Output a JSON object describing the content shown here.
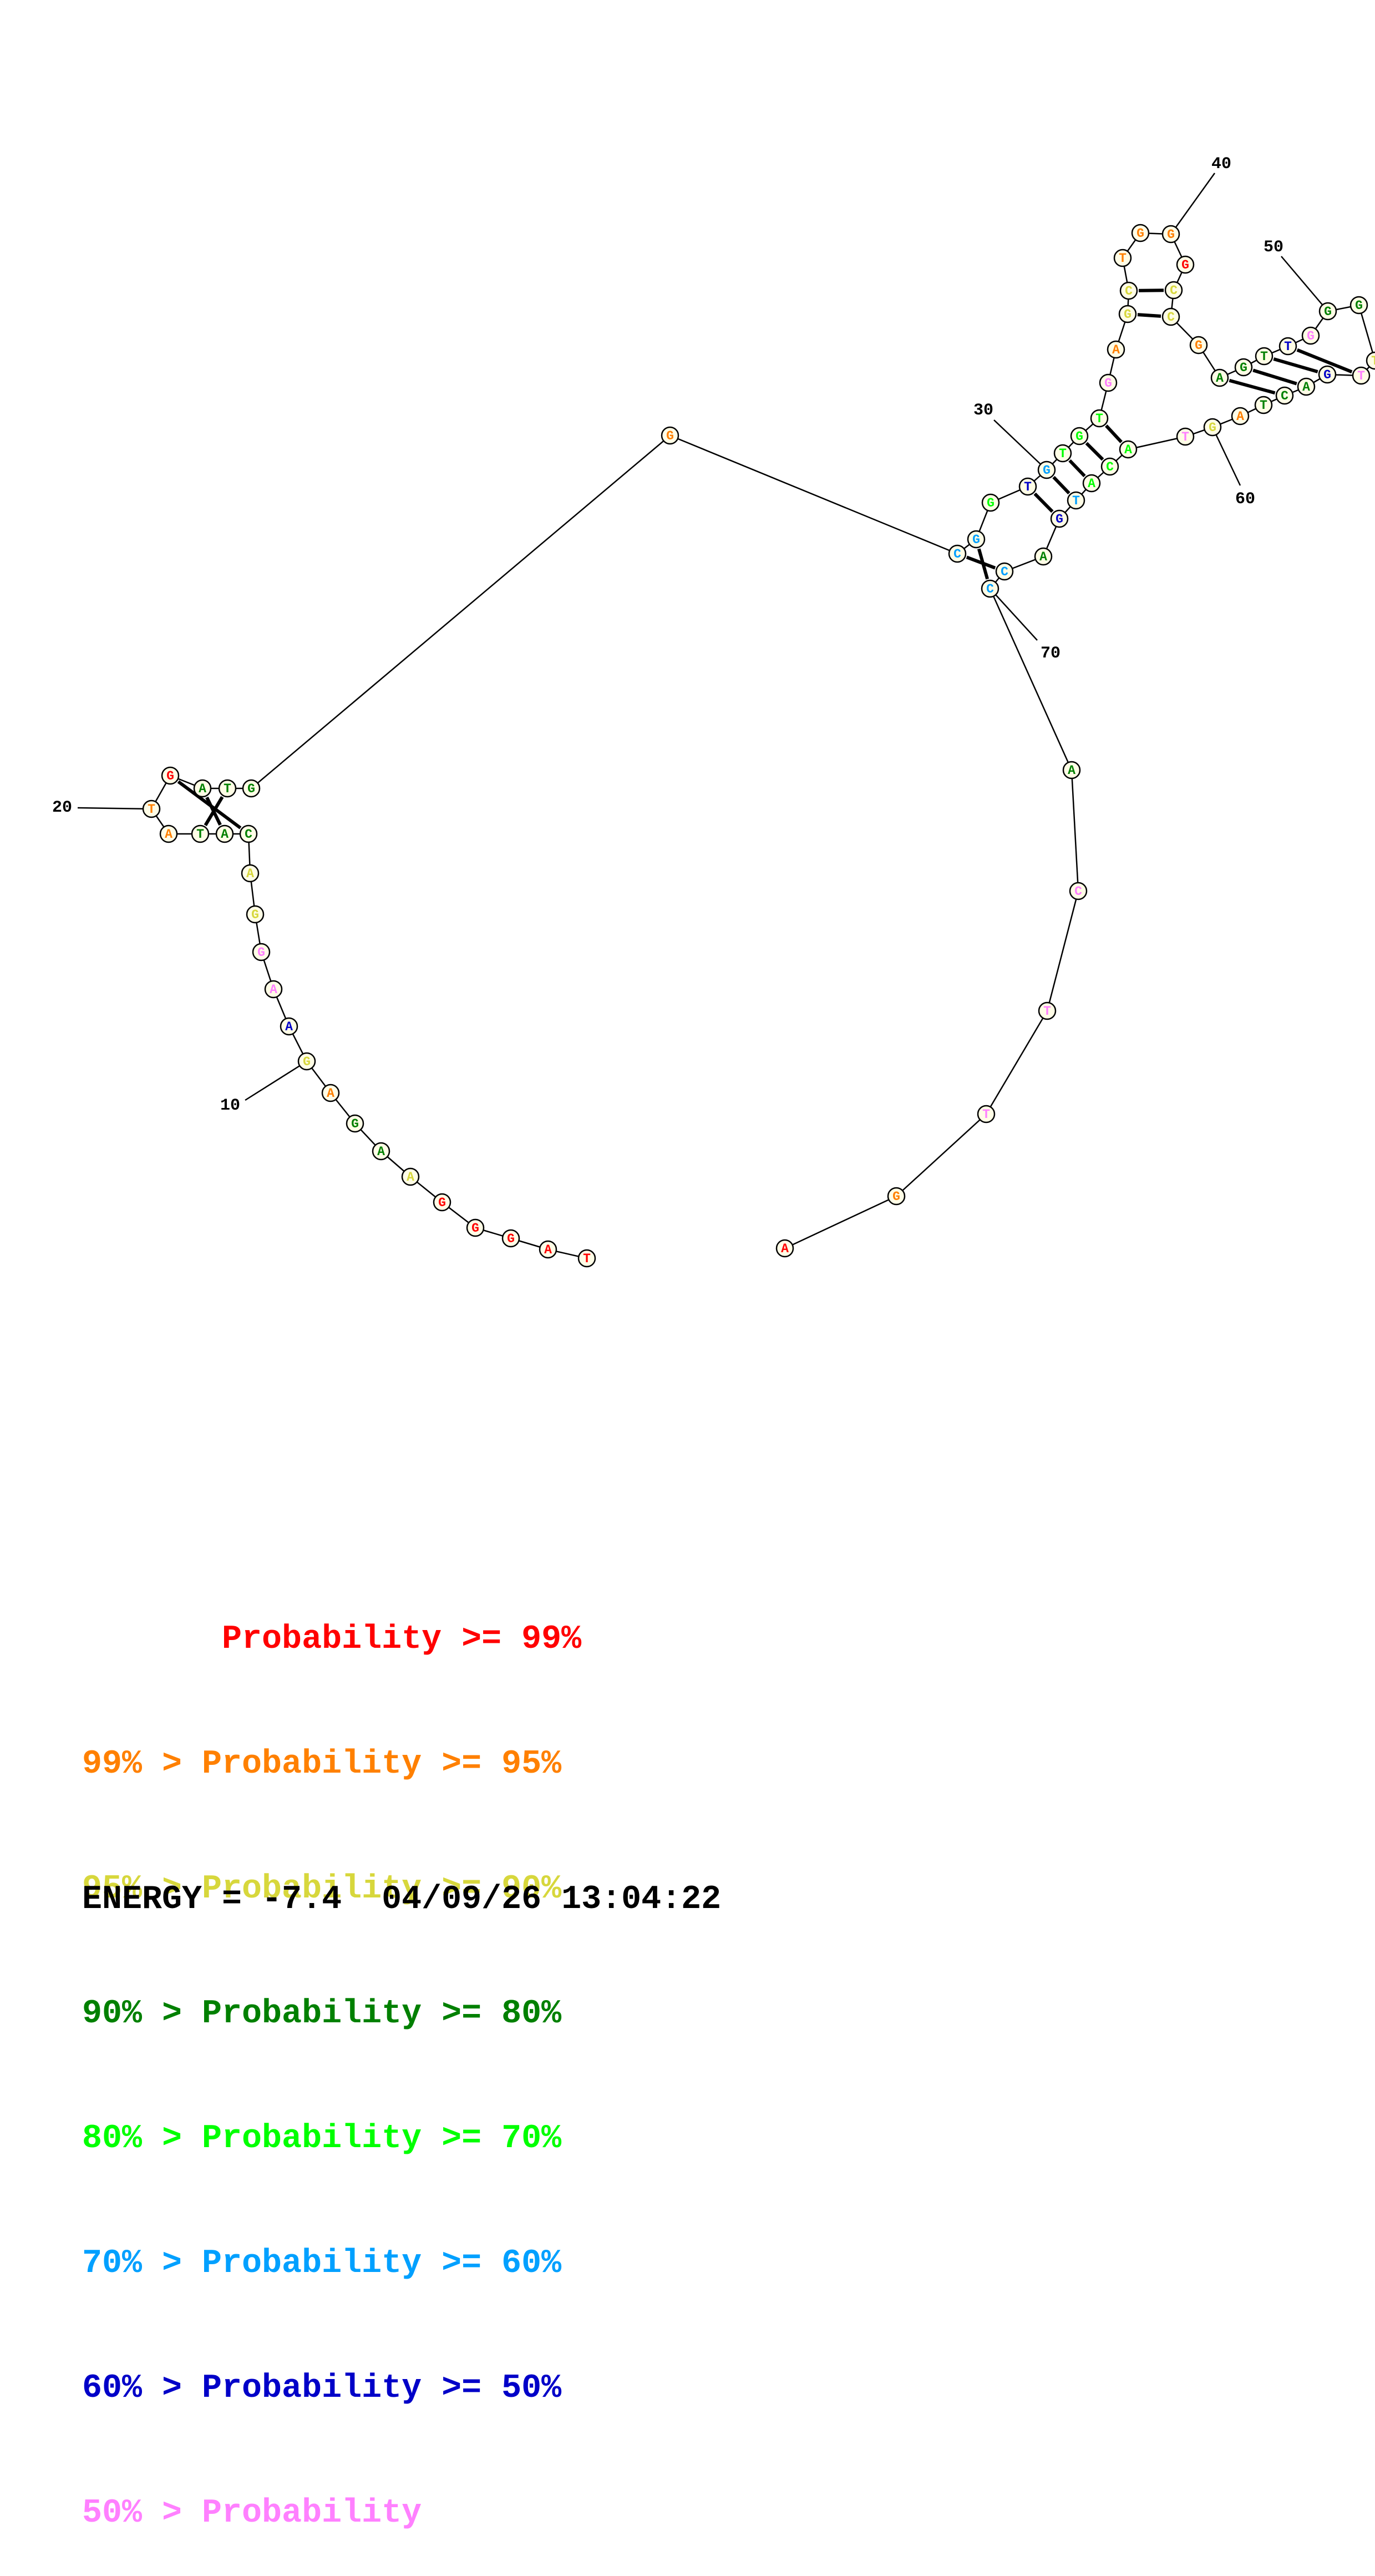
{
  "colors": {
    "p99": "#ff0000",
    "p95": "#ff8000",
    "p90": "#d7d73c",
    "p80": "#008000",
    "p70": "#00ff00",
    "p60": "#00a0ff",
    "p50": "#0000c8",
    "plow": "#ff80ff"
  },
  "nucleotides": [
    {
      "base": "T",
      "c": "p99"
    },
    {
      "base": "A",
      "c": "p99"
    },
    {
      "base": "G",
      "c": "p99"
    },
    {
      "base": "G",
      "c": "p99"
    },
    {
      "base": "G",
      "c": "p99"
    },
    {
      "base": "A",
      "c": "p90"
    },
    {
      "base": "A",
      "c": "p80"
    },
    {
      "base": "G",
      "c": "p80"
    },
    {
      "base": "A",
      "c": "p95"
    },
    {
      "base": "G",
      "c": "p90"
    },
    {
      "base": "A",
      "c": "p50"
    },
    {
      "base": "A",
      "c": "plow"
    },
    {
      "base": "G",
      "c": "plow"
    },
    {
      "base": "G",
      "c": "p90"
    },
    {
      "base": "A",
      "c": "p90"
    },
    {
      "base": "C",
      "c": "p80"
    },
    {
      "base": "A",
      "c": "p80"
    },
    {
      "base": "T",
      "c": "p80"
    },
    {
      "base": "A",
      "c": "p95"
    },
    {
      "base": "T",
      "c": "p95"
    },
    {
      "base": "G",
      "c": "p99"
    },
    {
      "base": "A",
      "c": "p80"
    },
    {
      "base": "T",
      "c": "p80"
    },
    {
      "base": "G",
      "c": "p80"
    },
    {
      "base": "G",
      "c": "p95"
    },
    {
      "base": "C",
      "c": "p60"
    },
    {
      "base": "G",
      "c": "p60"
    },
    {
      "base": "G",
      "c": "p70"
    },
    {
      "base": "T",
      "c": "p50"
    },
    {
      "base": "G",
      "c": "p60"
    },
    {
      "base": "T",
      "c": "p70"
    },
    {
      "base": "G",
      "c": "p70"
    },
    {
      "base": "T",
      "c": "p70"
    },
    {
      "base": "G",
      "c": "plow"
    },
    {
      "base": "A",
      "c": "p95"
    },
    {
      "base": "G",
      "c": "p90"
    },
    {
      "base": "C",
      "c": "p90"
    },
    {
      "base": "T",
      "c": "p95"
    },
    {
      "base": "G",
      "c": "p95"
    },
    {
      "base": "G",
      "c": "p95"
    },
    {
      "base": "G",
      "c": "p99"
    },
    {
      "base": "C",
      "c": "p90"
    },
    {
      "base": "C",
      "c": "p90"
    },
    {
      "base": "G",
      "c": "p95"
    },
    {
      "base": "A",
      "c": "p80"
    },
    {
      "base": "G",
      "c": "p80"
    },
    {
      "base": "T",
      "c": "p80"
    },
    {
      "base": "T",
      "c": "p50"
    },
    {
      "base": "G",
      "c": "plow"
    },
    {
      "base": "G",
      "c": "p80"
    },
    {
      "base": "G",
      "c": "p80"
    },
    {
      "base": "T",
      "c": "p90"
    },
    {
      "base": "T",
      "c": "plow"
    },
    {
      "base": "G",
      "c": "p50"
    },
    {
      "base": "A",
      "c": "p80"
    },
    {
      "base": "C",
      "c": "p80"
    },
    {
      "base": "T",
      "c": "p80"
    },
    {
      "base": "A",
      "c": "p95"
    },
    {
      "base": "G",
      "c": "p90"
    },
    {
      "base": "T",
      "c": "plow"
    },
    {
      "base": "A",
      "c": "p70"
    },
    {
      "base": "C",
      "c": "p70"
    },
    {
      "base": "A",
      "c": "p70"
    },
    {
      "base": "T",
      "c": "p60"
    },
    {
      "base": "G",
      "c": "p50"
    },
    {
      "base": "A",
      "c": "p80"
    },
    {
      "base": "C",
      "c": "p60"
    },
    {
      "base": "C",
      "c": "p60"
    },
    {
      "base": "A",
      "c": "p80"
    },
    {
      "base": "C",
      "c": "plow"
    },
    {
      "base": "T",
      "c": "plow"
    },
    {
      "base": "T",
      "c": "plow"
    },
    {
      "base": "G",
      "c": "p95"
    },
    {
      "base": "A",
      "c": "p99"
    }
  ],
  "position_labels": [
    "10",
    "20",
    "30",
    "40",
    "50",
    "60",
    "70"
  ],
  "legend": [
    {
      "text": "       Probability >= 99%",
      "c": "p99"
    },
    {
      "text": "99% > Probability >= 95%",
      "c": "p95"
    },
    {
      "text": "95% > Probability >= 90%",
      "c": "p90"
    },
    {
      "text": "90% > Probability >= 80%",
      "c": "p80"
    },
    {
      "text": "80% > Probability >= 70%",
      "c": "p70"
    },
    {
      "text": "70% > Probability >= 60%",
      "c": "p60"
    },
    {
      "text": "60% > Probability >= 50%",
      "c": "p50"
    },
    {
      "text": "50% > Probability",
      "c": "plow"
    }
  ],
  "energy_line": "ENERGY = -7.4  04/09/26 13:04:22"
}
